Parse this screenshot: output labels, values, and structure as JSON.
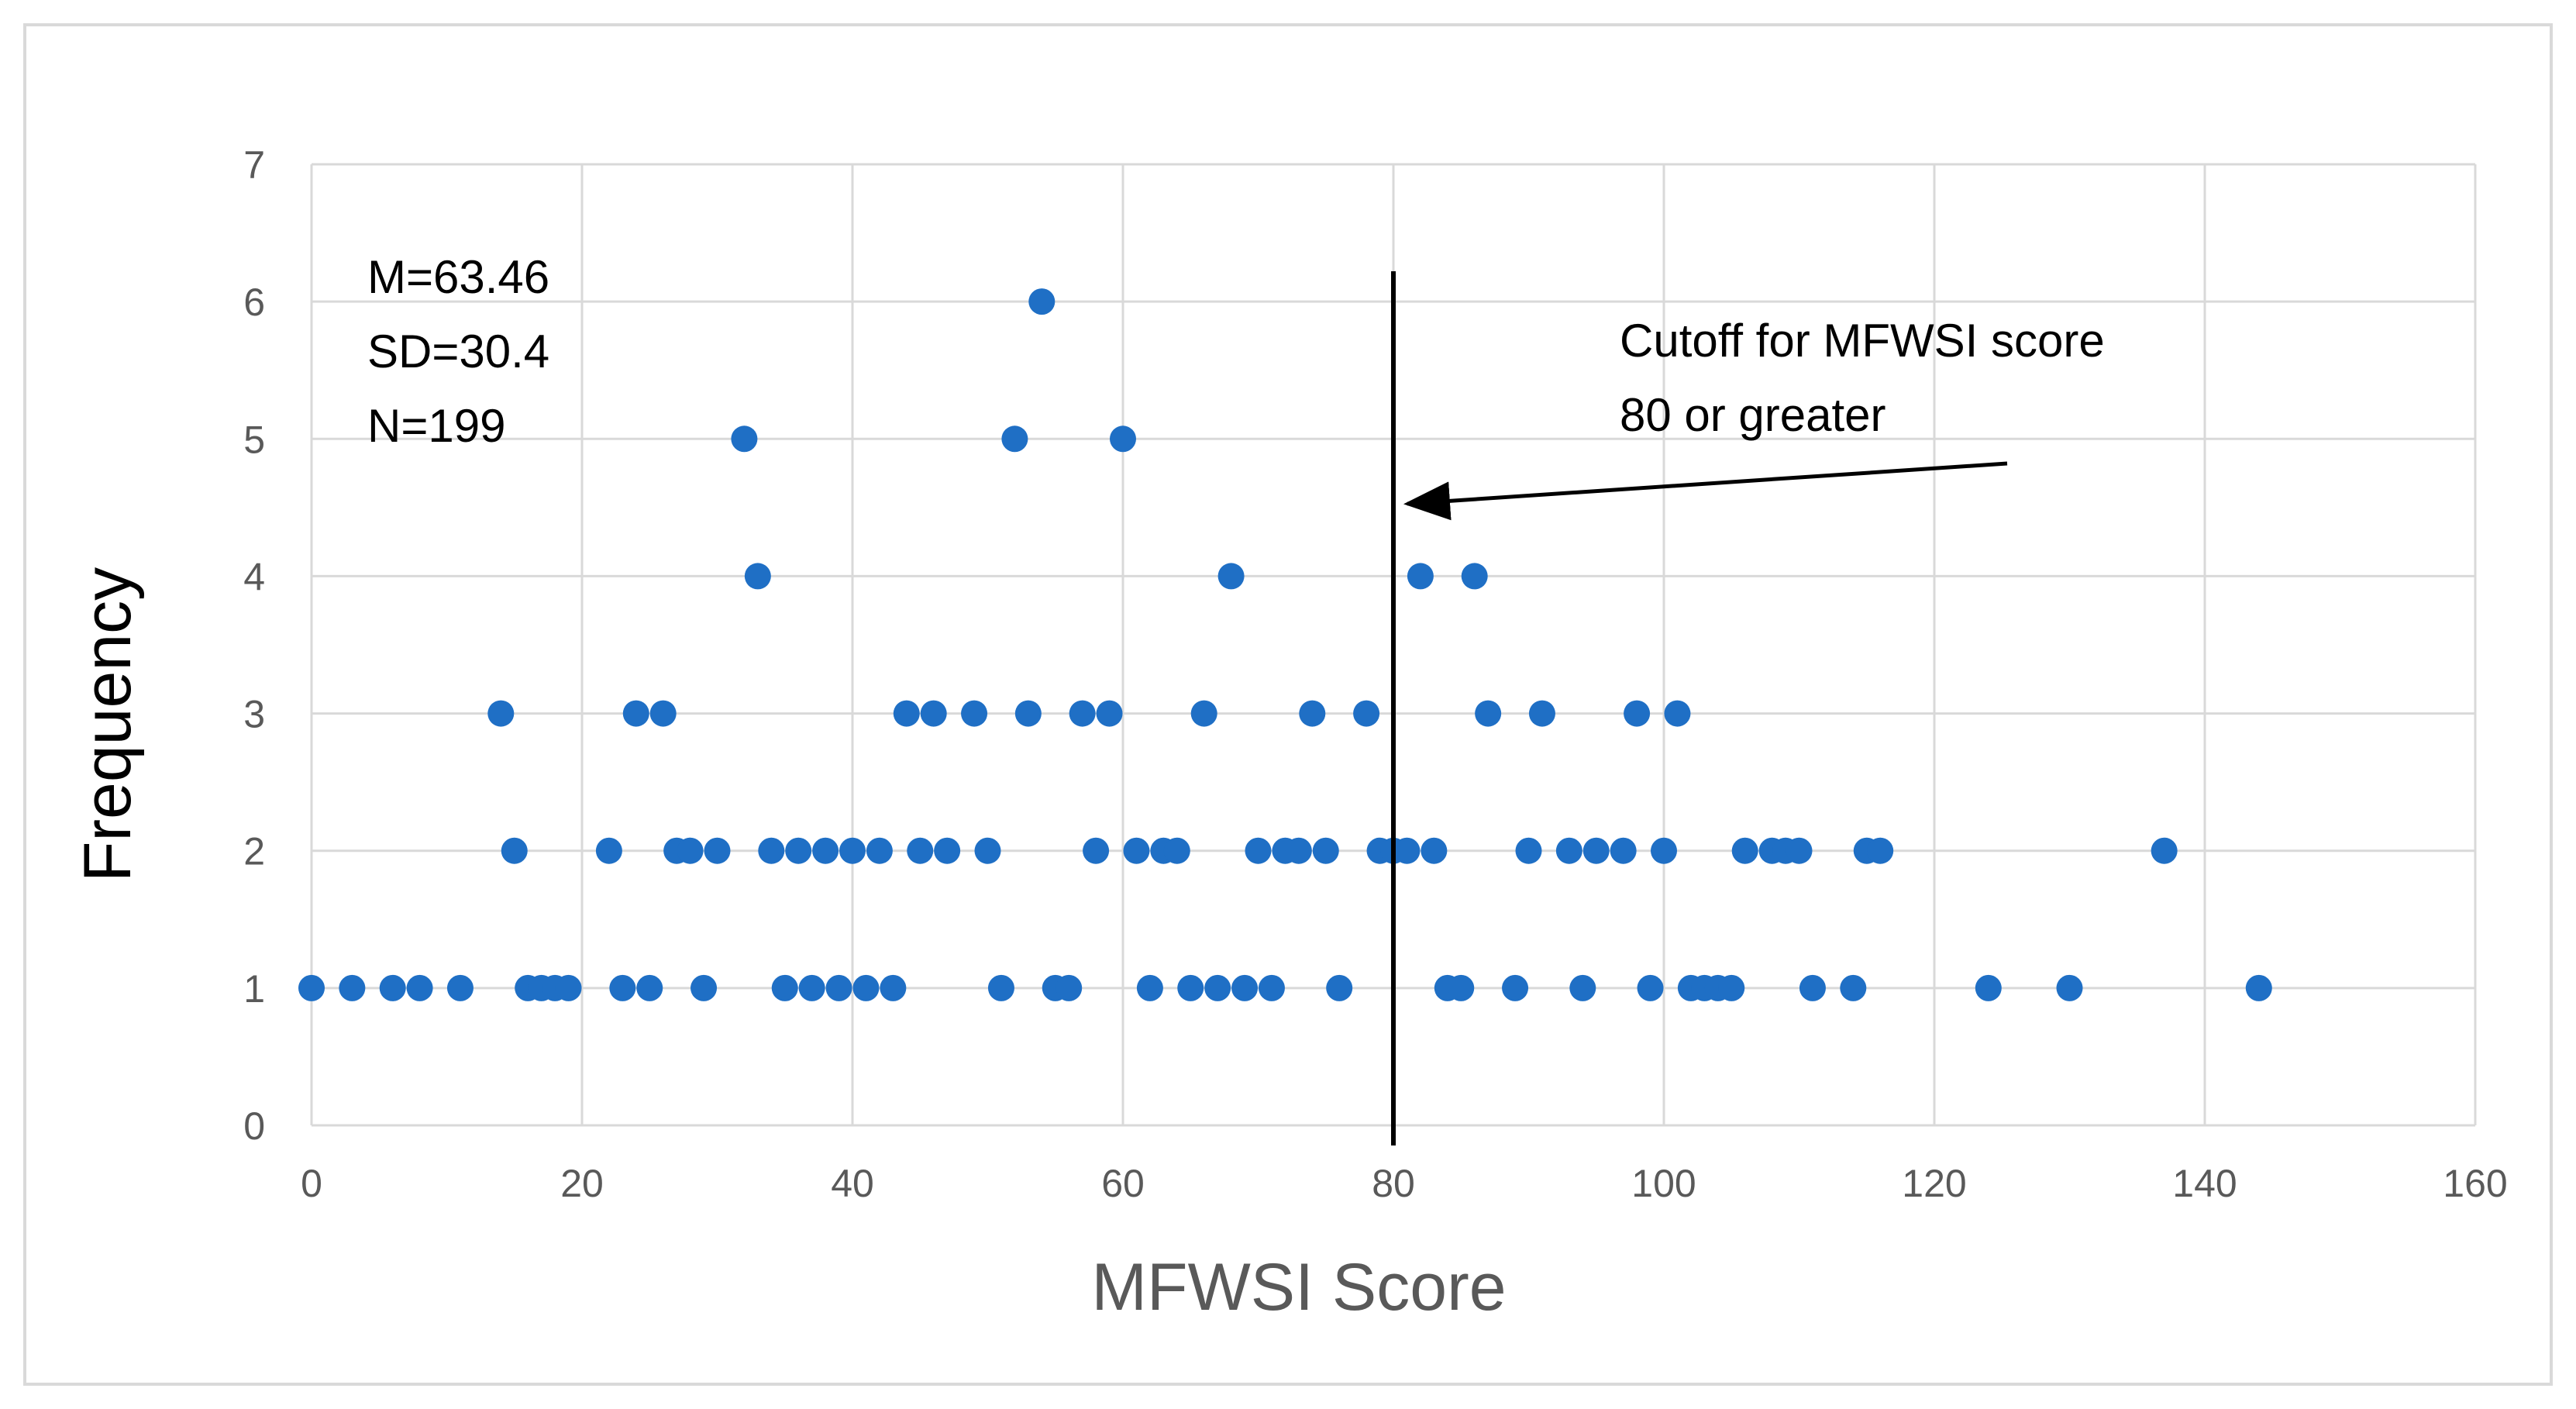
{
  "chart_data": {
    "type": "scatter",
    "title": "",
    "xlabel": "MFWSI Score",
    "ylabel": "Frequency",
    "xlim": [
      0,
      160
    ],
    "ylim": [
      0,
      7
    ],
    "xticks": [
      "0",
      "20",
      "40",
      "60",
      "80",
      "100",
      "120",
      "140",
      "160"
    ],
    "yticks": [
      "0",
      "1",
      "2",
      "3",
      "4",
      "5",
      "6",
      "7"
    ],
    "grid": true,
    "legend": "none",
    "series": [
      {
        "color": "#1f6fc5",
        "points": [
          {
            "x": 0,
            "y": 1
          },
          {
            "x": 3,
            "y": 1
          },
          {
            "x": 6,
            "y": 1
          },
          {
            "x": 8,
            "y": 1
          },
          {
            "x": 11,
            "y": 1
          },
          {
            "x": 16,
            "y": 1
          },
          {
            "x": 17,
            "y": 1
          },
          {
            "x": 18,
            "y": 1
          },
          {
            "x": 19,
            "y": 1
          },
          {
            "x": 23,
            "y": 1
          },
          {
            "x": 25,
            "y": 1
          },
          {
            "x": 29,
            "y": 1
          },
          {
            "x": 35,
            "y": 1
          },
          {
            "x": 37,
            "y": 1
          },
          {
            "x": 39,
            "y": 1
          },
          {
            "x": 41,
            "y": 1
          },
          {
            "x": 43,
            "y": 1
          },
          {
            "x": 51,
            "y": 1
          },
          {
            "x": 55,
            "y": 1
          },
          {
            "x": 56,
            "y": 1
          },
          {
            "x": 62,
            "y": 1
          },
          {
            "x": 65,
            "y": 1
          },
          {
            "x": 67,
            "y": 1
          },
          {
            "x": 69,
            "y": 1
          },
          {
            "x": 71,
            "y": 1
          },
          {
            "x": 76,
            "y": 1
          },
          {
            "x": 84,
            "y": 1
          },
          {
            "x": 85,
            "y": 1
          },
          {
            "x": 89,
            "y": 1
          },
          {
            "x": 94,
            "y": 1
          },
          {
            "x": 99,
            "y": 1
          },
          {
            "x": 102,
            "y": 1
          },
          {
            "x": 103,
            "y": 1
          },
          {
            "x": 104,
            "y": 1
          },
          {
            "x": 105,
            "y": 1
          },
          {
            "x": 111,
            "y": 1
          },
          {
            "x": 114,
            "y": 1
          },
          {
            "x": 124,
            "y": 1
          },
          {
            "x": 130,
            "y": 1
          },
          {
            "x": 144,
            "y": 1
          },
          {
            "x": 15,
            "y": 2
          },
          {
            "x": 22,
            "y": 2
          },
          {
            "x": 27,
            "y": 2
          },
          {
            "x": 28,
            "y": 2
          },
          {
            "x": 30,
            "y": 2
          },
          {
            "x": 34,
            "y": 2
          },
          {
            "x": 36,
            "y": 2
          },
          {
            "x": 38,
            "y": 2
          },
          {
            "x": 40,
            "y": 2
          },
          {
            "x": 42,
            "y": 2
          },
          {
            "x": 45,
            "y": 2
          },
          {
            "x": 47,
            "y": 2
          },
          {
            "x": 50,
            "y": 2
          },
          {
            "x": 58,
            "y": 2
          },
          {
            "x": 61,
            "y": 2
          },
          {
            "x": 63,
            "y": 2
          },
          {
            "x": 64,
            "y": 2
          },
          {
            "x": 70,
            "y": 2
          },
          {
            "x": 72,
            "y": 2
          },
          {
            "x": 73,
            "y": 2
          },
          {
            "x": 75,
            "y": 2
          },
          {
            "x": 79,
            "y": 2
          },
          {
            "x": 80,
            "y": 2
          },
          {
            "x": 81,
            "y": 2
          },
          {
            "x": 83,
            "y": 2
          },
          {
            "x": 90,
            "y": 2
          },
          {
            "x": 93,
            "y": 2
          },
          {
            "x": 95,
            "y": 2
          },
          {
            "x": 97,
            "y": 2
          },
          {
            "x": 100,
            "y": 2
          },
          {
            "x": 106,
            "y": 2
          },
          {
            "x": 108,
            "y": 2
          },
          {
            "x": 109,
            "y": 2
          },
          {
            "x": 110,
            "y": 2
          },
          {
            "x": 115,
            "y": 2
          },
          {
            "x": 116,
            "y": 2
          },
          {
            "x": 137,
            "y": 2
          },
          {
            "x": 14,
            "y": 3
          },
          {
            "x": 24,
            "y": 3
          },
          {
            "x": 26,
            "y": 3
          },
          {
            "x": 44,
            "y": 3
          },
          {
            "x": 46,
            "y": 3
          },
          {
            "x": 49,
            "y": 3
          },
          {
            "x": 53,
            "y": 3
          },
          {
            "x": 57,
            "y": 3
          },
          {
            "x": 59,
            "y": 3
          },
          {
            "x": 66,
            "y": 3
          },
          {
            "x": 74,
            "y": 3
          },
          {
            "x": 78,
            "y": 3
          },
          {
            "x": 87,
            "y": 3
          },
          {
            "x": 91,
            "y": 3
          },
          {
            "x": 98,
            "y": 3
          },
          {
            "x": 101,
            "y": 3
          },
          {
            "x": 33,
            "y": 4
          },
          {
            "x": 68,
            "y": 4
          },
          {
            "x": 82,
            "y": 4
          },
          {
            "x": 86,
            "y": 4
          },
          {
            "x": 32,
            "y": 5
          },
          {
            "x": 52,
            "y": 5
          },
          {
            "x": 60,
            "y": 5
          },
          {
            "x": 54,
            "y": 6
          }
        ]
      }
    ],
    "stats_annotation": [
      "M=63.46",
      "SD=30.4",
      "N=199"
    ],
    "cutoff": {
      "x": 80,
      "label": [
        "Cutoff for MFWSI score",
        "80 or greater"
      ]
    }
  }
}
